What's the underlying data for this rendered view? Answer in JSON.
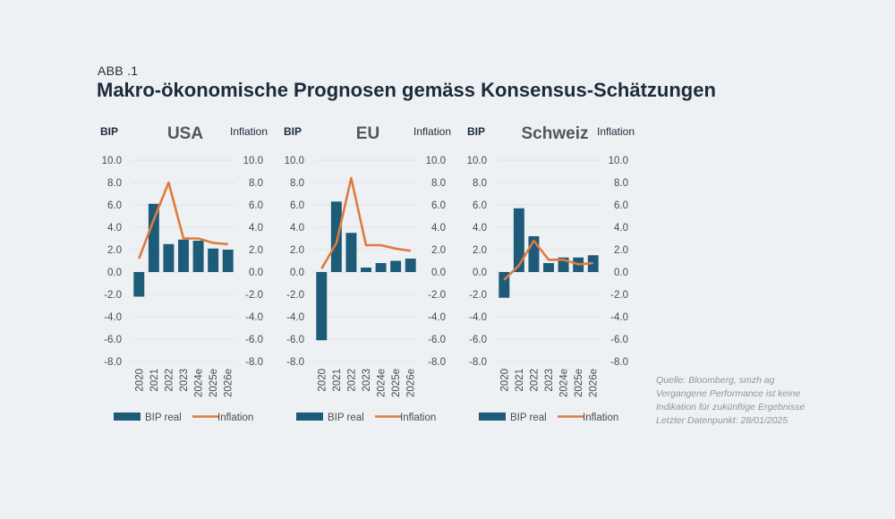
{
  "figure_label": "ABB .1",
  "title": "Makro-ökonomische Prognosen gemäss Konsensus-Schätzungen",
  "colors": {
    "bar": "#1e5b78",
    "line": "#e07b3c",
    "text": "#1c2b3a",
    "grid": "#ffffff",
    "tick": "#4a4a4a",
    "background": "#eef1f4"
  },
  "source_lines": [
    "Quelle: Bloomberg, smzh ag",
    "Vergangene Performance ist keine",
    "Indikation für zukünftige Ergebnisse",
    "Letzter Datenpunkt: 28/01/2025"
  ],
  "chart_data": [
    {
      "type": "bar",
      "title": "USA",
      "ylabel_left": "BIP",
      "ylabel_right": "Inflation",
      "categories": [
        "2020",
        "2021",
        "2022",
        "2023",
        "2024e",
        "2025e",
        "2026e"
      ],
      "ylim": [
        -8,
        10
      ],
      "yticks": [
        "10.0",
        "8.0",
        "6.0",
        "4.0",
        "2.0",
        "0.0",
        "-2.0",
        "-4.0",
        "-6.0",
        "-8.0"
      ],
      "series": [
        {
          "name": "BIP real",
          "type": "bar",
          "values": [
            -2.2,
            6.1,
            2.5,
            2.9,
            2.8,
            2.1,
            2.0
          ]
        },
        {
          "name": "Inflation",
          "type": "line",
          "values": [
            1.2,
            4.7,
            8.0,
            3.0,
            3.0,
            2.6,
            2.5
          ]
        }
      ],
      "legend": "bottom",
      "grid": true
    },
    {
      "type": "bar",
      "title": "EU",
      "ylabel_left": "BIP",
      "ylabel_right": "Inflation",
      "categories": [
        "2020",
        "2021",
        "2022",
        "2023",
        "2024e",
        "2025e",
        "2026e"
      ],
      "ylim": [
        -8,
        10
      ],
      "yticks": [
        "10.0",
        "8.0",
        "6.0",
        "4.0",
        "2.0",
        "0.0",
        "-2.0",
        "-4.0",
        "-6.0",
        "-8.0"
      ],
      "series": [
        {
          "name": "BIP real",
          "type": "bar",
          "values": [
            -6.1,
            6.3,
            3.5,
            0.4,
            0.8,
            1.0,
            1.2
          ]
        },
        {
          "name": "Inflation",
          "type": "line",
          "values": [
            0.3,
            2.6,
            8.4,
            2.4,
            2.4,
            2.1,
            1.9
          ]
        }
      ],
      "legend": "bottom",
      "grid": true
    },
    {
      "type": "bar",
      "title": "Schweiz",
      "ylabel_left": "BIP",
      "ylabel_right": "Inflation",
      "categories": [
        "2020",
        "2021",
        "2022",
        "2023",
        "2024e",
        "2025e",
        "2026e"
      ],
      "ylim": [
        -8,
        10
      ],
      "yticks": [
        "10.0",
        "8.0",
        "6.0",
        "4.0",
        "2.0",
        "0.0",
        "-2.0",
        "-4.0",
        "-6.0",
        "-8.0"
      ],
      "series": [
        {
          "name": "BIP real",
          "type": "bar",
          "values": [
            -2.3,
            5.7,
            3.2,
            0.8,
            1.3,
            1.3,
            1.5
          ]
        },
        {
          "name": "Inflation",
          "type": "line",
          "values": [
            -0.7,
            0.6,
            2.8,
            1.1,
            1.1,
            0.7,
            0.8
          ]
        }
      ],
      "legend": "bottom",
      "grid": true
    }
  ]
}
